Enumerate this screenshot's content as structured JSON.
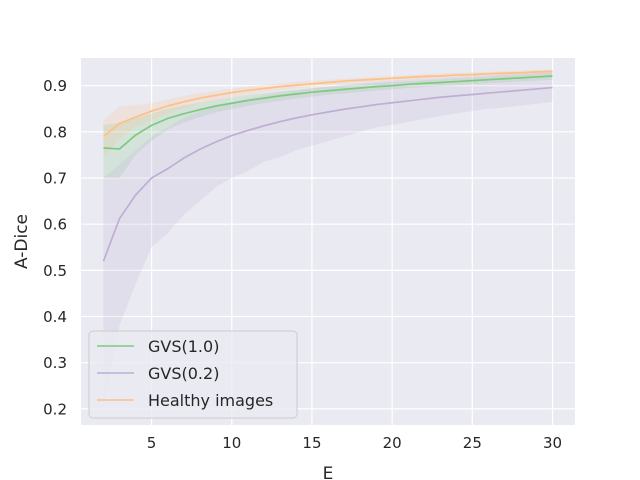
{
  "chart_data": {
    "type": "line",
    "title": "",
    "xlabel": "E",
    "ylabel": "A-Dice",
    "xlim": [
      0.6,
      31.4
    ],
    "ylim": [
      0.165,
      0.96
    ],
    "xticks": [
      5,
      10,
      15,
      20,
      25,
      30
    ],
    "yticks": [
      0.2,
      0.3,
      0.4,
      0.5,
      0.6,
      0.7,
      0.8,
      0.9
    ],
    "grid": true,
    "legend_position": "lower-left",
    "x": [
      2,
      3,
      4,
      5,
      6,
      7,
      8,
      9,
      10,
      11,
      12,
      13,
      14,
      15,
      16,
      17,
      18,
      19,
      20,
      21,
      22,
      23,
      24,
      25,
      26,
      27,
      28,
      29,
      30
    ],
    "series": [
      {
        "name": "GVS(1.0)",
        "color": "#7fc97f",
        "values": [
          0.765,
          0.763,
          0.793,
          0.814,
          0.829,
          0.839,
          0.848,
          0.856,
          0.862,
          0.868,
          0.873,
          0.878,
          0.882,
          0.886,
          0.889,
          0.892,
          0.895,
          0.898,
          0.9,
          0.903,
          0.905,
          0.907,
          0.909,
          0.911,
          0.913,
          0.915,
          0.917,
          0.919,
          0.921
        ],
        "lower": [
          0.7,
          0.7,
          0.75,
          0.78,
          0.805,
          0.82,
          0.832,
          0.842,
          0.849,
          0.856,
          0.862,
          0.867,
          0.872,
          0.876,
          0.88,
          0.883,
          0.886,
          0.889,
          0.892,
          0.895,
          0.897,
          0.899,
          0.901,
          0.903,
          0.905,
          0.907,
          0.909,
          0.911,
          0.913
        ],
        "upper": [
          0.815,
          0.82,
          0.83,
          0.84,
          0.85,
          0.857,
          0.863,
          0.869,
          0.875,
          0.88,
          0.884,
          0.888,
          0.891,
          0.895,
          0.898,
          0.901,
          0.903,
          0.906,
          0.908,
          0.91,
          0.912,
          0.914,
          0.916,
          0.918,
          0.92,
          0.922,
          0.924,
          0.926,
          0.928
        ]
      },
      {
        "name": "GVS(0.2)",
        "color": "#beaed4",
        "values": [
          0.52,
          0.612,
          0.663,
          0.7,
          0.72,
          0.743,
          0.762,
          0.778,
          0.792,
          0.803,
          0.813,
          0.822,
          0.83,
          0.837,
          0.843,
          0.849,
          0.854,
          0.859,
          0.863,
          0.867,
          0.871,
          0.875,
          0.878,
          0.881,
          0.884,
          0.887,
          0.89,
          0.893,
          0.896
        ],
        "lower": [
          0.2,
          0.38,
          0.47,
          0.55,
          0.58,
          0.62,
          0.65,
          0.68,
          0.7,
          0.715,
          0.735,
          0.745,
          0.76,
          0.77,
          0.78,
          0.79,
          0.8,
          0.81,
          0.815,
          0.822,
          0.828,
          0.834,
          0.84,
          0.845,
          0.85,
          0.853,
          0.857,
          0.861,
          0.865
        ],
        "upper": [
          0.7,
          0.73,
          0.76,
          0.79,
          0.81,
          0.83,
          0.845,
          0.855,
          0.865,
          0.872,
          0.879,
          0.885,
          0.89,
          0.894,
          0.898,
          0.902,
          0.905,
          0.908,
          0.911,
          0.913,
          0.915,
          0.917,
          0.919,
          0.921,
          0.923,
          0.925,
          0.927,
          0.929,
          0.931
        ]
      },
      {
        "name": "Healthy images",
        "color": "#fdc086",
        "values": [
          0.79,
          0.818,
          0.832,
          0.845,
          0.856,
          0.865,
          0.873,
          0.879,
          0.885,
          0.89,
          0.894,
          0.898,
          0.901,
          0.904,
          0.907,
          0.91,
          0.912,
          0.914,
          0.916,
          0.918,
          0.92,
          0.921,
          0.923,
          0.924,
          0.926,
          0.927,
          0.928,
          0.93,
          0.931
        ],
        "lower": [
          0.745,
          0.785,
          0.81,
          0.825,
          0.84,
          0.851,
          0.861,
          0.868,
          0.875,
          0.881,
          0.886,
          0.89,
          0.894,
          0.897,
          0.9,
          0.903,
          0.906,
          0.908,
          0.91,
          0.912,
          0.914,
          0.916,
          0.918,
          0.919,
          0.921,
          0.922,
          0.924,
          0.925,
          0.927
        ],
        "upper": [
          0.825,
          0.855,
          0.858,
          0.862,
          0.87,
          0.878,
          0.884,
          0.889,
          0.894,
          0.898,
          0.902,
          0.905,
          0.908,
          0.911,
          0.913,
          0.915,
          0.917,
          0.919,
          0.921,
          0.923,
          0.925,
          0.926,
          0.928,
          0.929,
          0.93,
          0.932,
          0.933,
          0.934,
          0.935
        ]
      }
    ]
  },
  "colors": {
    "plot_background": "#eaeaf2",
    "grid": "#ffffff",
    "text": "#262626"
  }
}
